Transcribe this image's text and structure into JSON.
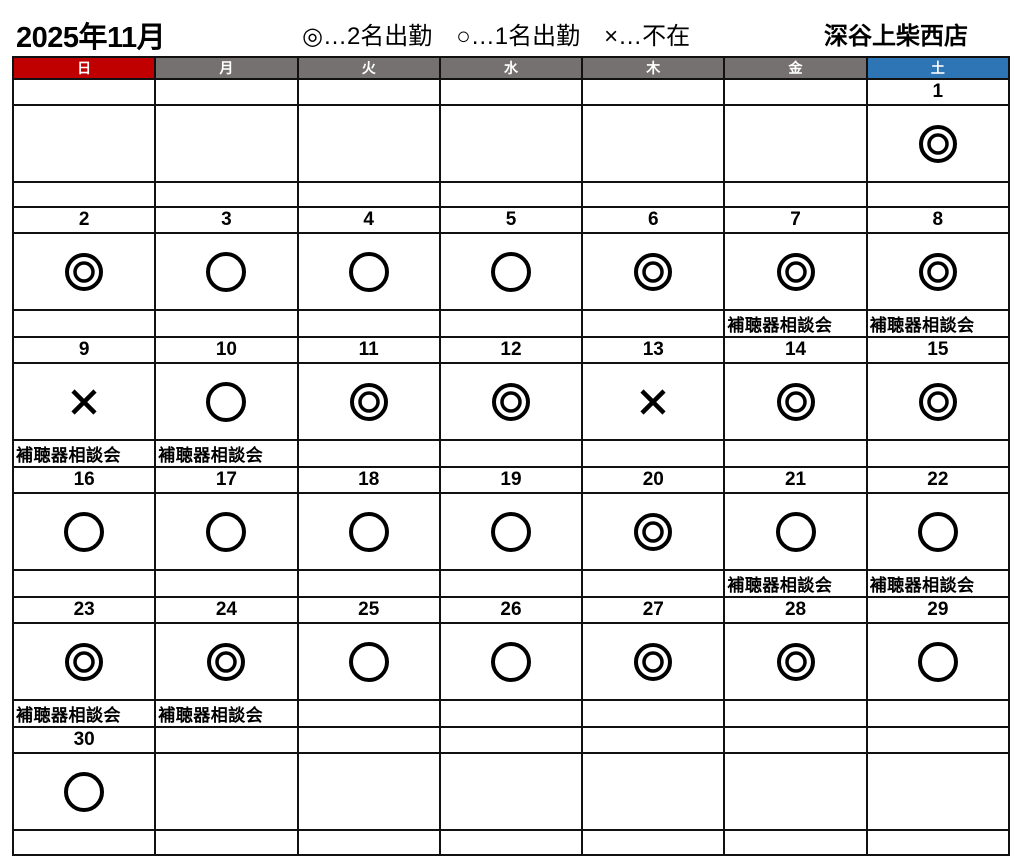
{
  "title": "2025年11月",
  "legend": [
    "◎…2名出勤",
    "○…1名出勤",
    "×…不在"
  ],
  "store": "深谷上柴西店",
  "weekdays": [
    {
      "label": "日",
      "color": "#c00000"
    },
    {
      "label": "月",
      "color": "#767171"
    },
    {
      "label": "火",
      "color": "#767171"
    },
    {
      "label": "水",
      "color": "#767171"
    },
    {
      "label": "木",
      "color": "#767171"
    },
    {
      "label": "金",
      "color": "#767171"
    },
    {
      "label": "土",
      "color": "#2e75b6"
    }
  ],
  "weeks": [
    [
      {},
      {},
      {},
      {},
      {},
      {},
      {
        "date": "1",
        "mark": "double-circle"
      }
    ],
    [
      {
        "date": "2",
        "mark": "double-circle"
      },
      {
        "date": "3",
        "mark": "circle"
      },
      {
        "date": "4",
        "mark": "circle"
      },
      {
        "date": "5",
        "mark": "circle"
      },
      {
        "date": "6",
        "mark": "double-circle"
      },
      {
        "date": "7",
        "mark": "double-circle",
        "note": "補聴器相談会"
      },
      {
        "date": "8",
        "mark": "double-circle",
        "note": "補聴器相談会"
      }
    ],
    [
      {
        "date": "9",
        "mark": "cross",
        "note": "補聴器相談会"
      },
      {
        "date": "10",
        "mark": "circle",
        "note": "補聴器相談会"
      },
      {
        "date": "11",
        "mark": "double-circle"
      },
      {
        "date": "12",
        "mark": "double-circle"
      },
      {
        "date": "13",
        "mark": "cross"
      },
      {
        "date": "14",
        "mark": "double-circle"
      },
      {
        "date": "15",
        "mark": "double-circle"
      }
    ],
    [
      {
        "date": "16",
        "mark": "circle"
      },
      {
        "date": "17",
        "mark": "circle"
      },
      {
        "date": "18",
        "mark": "circle"
      },
      {
        "date": "19",
        "mark": "circle"
      },
      {
        "date": "20",
        "mark": "double-circle"
      },
      {
        "date": "21",
        "mark": "circle",
        "note": "補聴器相談会"
      },
      {
        "date": "22",
        "mark": "circle",
        "note": "補聴器相談会"
      }
    ],
    [
      {
        "date": "23",
        "mark": "double-circle",
        "note": "補聴器相談会"
      },
      {
        "date": "24",
        "mark": "double-circle",
        "note": "補聴器相談会"
      },
      {
        "date": "25",
        "mark": "circle"
      },
      {
        "date": "26",
        "mark": "circle"
      },
      {
        "date": "27",
        "mark": "double-circle"
      },
      {
        "date": "28",
        "mark": "double-circle"
      },
      {
        "date": "29",
        "mark": "circle"
      }
    ],
    [
      {
        "date": "30",
        "mark": "circle"
      },
      {},
      {},
      {},
      {},
      {},
      {}
    ]
  ]
}
